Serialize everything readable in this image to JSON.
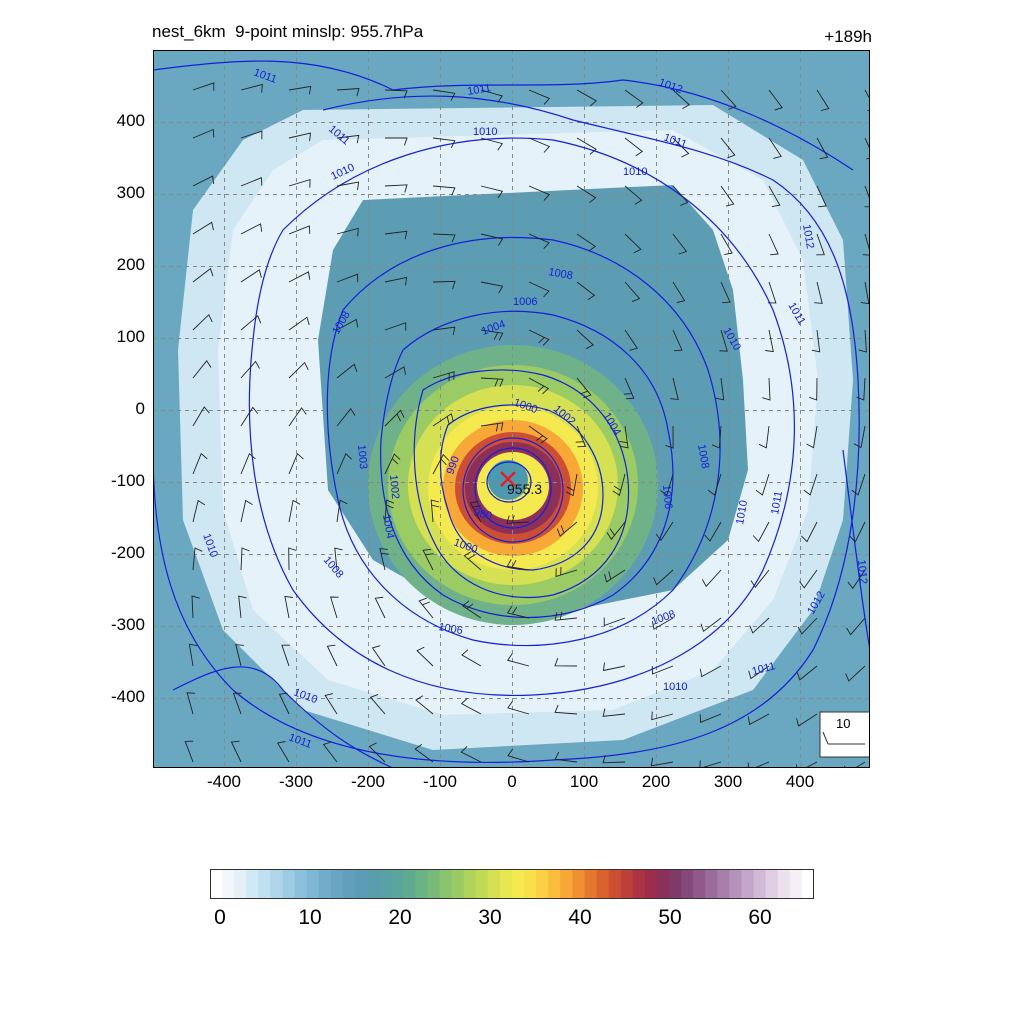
{
  "header": {
    "title": "nest_6km  9-point minslp: 955.7hPa",
    "lead_time": "+189h"
  },
  "map": {
    "center_label": "955.3",
    "center_marker_color": "#e0202a",
    "reference_vector_label": "10",
    "xticks": [
      "-400",
      "-300",
      "-200",
      "-100",
      "0",
      "100",
      "200",
      "300",
      "400"
    ],
    "yticks": [
      "400",
      "300",
      "200",
      "100",
      "0",
      "-100",
      "-200",
      "-300",
      "-400"
    ],
    "contour_color": "#1420d8",
    "contour_labels": [
      "1011",
      "1012",
      "1011",
      "1011",
      "1010",
      "1011",
      "1010",
      "1010",
      "1012",
      "1008",
      "1011",
      "1010",
      "1006",
      "1008",
      "1004",
      "1000",
      "1002",
      "1004",
      "1008",
      "1003",
      "990",
      "1002",
      "1006",
      "1004",
      "980",
      "1010",
      "1011",
      "1000",
      "1012",
      "1010",
      "1008",
      "1006",
      "1008",
      "1012",
      "1011",
      "1010",
      "1010",
      "1011"
    ]
  },
  "colorbar": {
    "labels": [
      "0",
      "10",
      "20",
      "30",
      "40",
      "50",
      "60"
    ],
    "colors": [
      "#ffffff",
      "#f2f7fb",
      "#e3f0f8",
      "#d1e8f5",
      "#bfe0f0",
      "#aed5ea",
      "#9dcbe3",
      "#8dc0dc",
      "#7fb6d4",
      "#73accb",
      "#69a4c3",
      "#629fbd",
      "#5c9cb6",
      "#5a9eae",
      "#59a1a6",
      "#5aa59c",
      "#60ab90",
      "#6bb284",
      "#79ba78",
      "#89c36d",
      "#9acb64",
      "#aed35b",
      "#c1da55",
      "#d5e152",
      "#e7e751",
      "#f4ea4f",
      "#f9e04a",
      "#fbd044",
      "#fbbd3d",
      "#f7a836",
      "#f09030",
      "#e6782d",
      "#da622f",
      "#cc4e33",
      "#bd3f3a",
      "#ad3442",
      "#9c2d4c",
      "#8c2f59",
      "#7f3a68",
      "#84497a",
      "#8f5a8b",
      "#9b6c9b",
      "#a87fab",
      "#b592ba",
      "#c3a6c9",
      "#d1bad7",
      "#dfcee4",
      "#ece1ef",
      "#f6eff8",
      "#ffffff"
    ]
  }
}
